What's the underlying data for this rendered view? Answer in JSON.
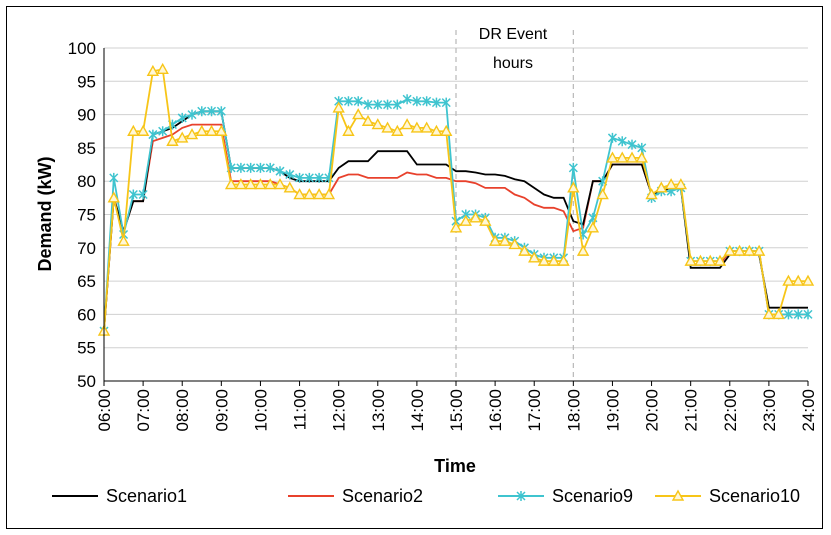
{
  "chart_data": {
    "type": "line",
    "xlabel": "Time",
    "ylabel": "Demand (kW)",
    "ylim": [
      50,
      100
    ],
    "yticks": [
      "50",
      "55",
      "60",
      "65",
      "70",
      "75",
      "80",
      "85",
      "90",
      "95",
      "100"
    ],
    "xlim": [
      6,
      24
    ],
    "xtick_labels": [
      "06:00",
      "07:00",
      "08:00",
      "09:00",
      "10:00",
      "11:00",
      "12:00",
      "13:00",
      "14:00",
      "15:00",
      "16:00",
      "17:00",
      "18:00",
      "19:00",
      "20:00",
      "21:00",
      "22:00",
      "23:00",
      "24:00"
    ],
    "grid": "horizontal",
    "legend_position": "bottom",
    "annotation": {
      "line1": "DR Event",
      "line2": "hours",
      "start_hour": 15,
      "end_hour": 18
    },
    "series": [
      {
        "name": "Scenario1",
        "color": "#000000",
        "marker": "none",
        "x": [
          6,
          6.25,
          6.5,
          6.75,
          7,
          7.25,
          7.5,
          7.75,
          8,
          8.25,
          8.5,
          8.75,
          9,
          9.25,
          9.5,
          9.75,
          10,
          10.25,
          10.5,
          10.75,
          11,
          11.25,
          11.5,
          11.75,
          12,
          12.25,
          12.5,
          12.75,
          13,
          13.25,
          13.5,
          13.75,
          14,
          14.25,
          14.5,
          14.75,
          15,
          15.25,
          15.5,
          15.75,
          16,
          16.25,
          16.5,
          16.75,
          17,
          17.25,
          17.5,
          17.75,
          18,
          18.25,
          18.5,
          18.75,
          19,
          19.25,
          19.5,
          19.75,
          20,
          20.25,
          20.5,
          20.75,
          21,
          21.25,
          21.5,
          21.75,
          22,
          22.25,
          22.5,
          22.75,
          23,
          23.25,
          23.5,
          23.75,
          24
        ],
        "y": [
          57.5,
          77.5,
          72.5,
          77,
          77,
          87,
          87.5,
          88,
          89,
          90,
          90.5,
          90.5,
          90.5,
          82,
          82,
          82,
          82,
          82,
          81.5,
          80.5,
          80,
          80,
          80,
          80,
          82,
          83,
          83,
          83,
          84.5,
          84.5,
          84.5,
          84.5,
          82.5,
          82.5,
          82.5,
          82.5,
          81.5,
          81.5,
          81.3,
          81,
          81,
          80.8,
          80.3,
          80,
          79,
          78,
          77.5,
          77.5,
          74,
          73.5,
          80,
          80,
          82.5,
          82.5,
          82.5,
          82.5,
          78,
          78.5,
          79,
          79,
          67,
          67,
          67,
          67,
          69,
          69,
          69,
          69,
          61,
          61,
          61,
          61,
          61
        ]
      },
      {
        "name": "Scenario2",
        "color": "#e8412c",
        "marker": "none",
        "x": [
          6,
          6.25,
          6.5,
          6.75,
          7,
          7.25,
          7.5,
          7.75,
          8,
          8.25,
          8.5,
          8.75,
          9,
          9.25,
          9.5,
          9.75,
          10,
          10.25,
          10.5,
          10.75,
          11,
          11.25,
          11.5,
          11.75,
          12,
          12.25,
          12.5,
          12.75,
          13,
          13.25,
          13.5,
          13.75,
          14,
          14.25,
          14.5,
          14.75,
          15,
          15.25,
          15.5,
          15.75,
          16,
          16.25,
          16.5,
          16.75,
          17,
          17.25,
          17.5,
          17.75,
          18,
          18.25,
          18.5,
          18.75,
          19,
          19.25,
          19.5,
          19.75,
          20,
          20.25,
          20.5,
          20.75,
          21,
          21.25,
          21.5,
          21.75,
          22,
          22.25,
          22.5,
          22.75,
          23,
          23.25,
          23.5,
          23.75,
          24
        ],
        "y": [
          57.5,
          77.5,
          72.5,
          77,
          77,
          86,
          86.5,
          87,
          88,
          88.5,
          88.5,
          88.5,
          88.5,
          80,
          80,
          80,
          80,
          80,
          79.5,
          79,
          78,
          78,
          78,
          78,
          80.5,
          81,
          81,
          80.5,
          80.5,
          80.5,
          80.5,
          81.3,
          81,
          81,
          80.5,
          80.5,
          80,
          80,
          79.7,
          79,
          79,
          79,
          78,
          77.5,
          76.5,
          76,
          76,
          75.5,
          72.5,
          73,
          80,
          80,
          82.5,
          82.5,
          82.5,
          82.5,
          78,
          78.5,
          79,
          79,
          67.5,
          67.5,
          67.5,
          67.5,
          69.5,
          69.5,
          69.5,
          69.5,
          60,
          60,
          60,
          60,
          60
        ]
      },
      {
        "name": "Scenario9",
        "color": "#3fc4cf",
        "marker": "x",
        "x": [
          6,
          6.25,
          6.5,
          6.75,
          7,
          7.25,
          7.5,
          7.75,
          8,
          8.25,
          8.5,
          8.75,
          9,
          9.25,
          9.5,
          9.75,
          10,
          10.25,
          10.5,
          10.75,
          11,
          11.25,
          11.5,
          11.75,
          12,
          12.25,
          12.5,
          12.75,
          13,
          13.25,
          13.5,
          13.75,
          14,
          14.25,
          14.5,
          14.75,
          15,
          15.25,
          15.5,
          15.75,
          16,
          16.25,
          16.5,
          16.75,
          17,
          17.25,
          17.5,
          17.75,
          18,
          18.25,
          18.5,
          18.75,
          19,
          19.25,
          19.5,
          19.75,
          20,
          20.25,
          20.5,
          20.75,
          21,
          21.25,
          21.5,
          21.75,
          22,
          22.25,
          22.5,
          22.75,
          23,
          23.25,
          23.5,
          23.75,
          24
        ],
        "y": [
          57.5,
          80.5,
          72,
          78,
          78,
          87,
          87.5,
          88.5,
          89.5,
          90,
          90.5,
          90.5,
          90.5,
          82,
          82,
          82,
          82,
          82,
          81.5,
          81,
          80.5,
          80.5,
          80.5,
          80.5,
          92,
          92,
          92,
          91.5,
          91.5,
          91.5,
          91.5,
          92.3,
          92,
          92,
          91.8,
          91.8,
          74,
          75,
          75,
          74.5,
          71.5,
          71.5,
          71,
          70,
          69,
          68.5,
          68.5,
          68.5,
          82,
          72,
          74.5,
          80,
          86.5,
          86,
          85.5,
          85,
          77.5,
          78.5,
          78.5,
          79,
          68,
          68,
          68,
          68,
          69.5,
          69.5,
          69.5,
          69.5,
          60,
          60,
          60,
          60,
          60
        ]
      },
      {
        "name": "Scenario10",
        "color": "#f7c518",
        "marker": "triangle",
        "x": [
          6,
          6.25,
          6.5,
          6.75,
          7,
          7.25,
          7.5,
          7.75,
          8,
          8.25,
          8.5,
          8.75,
          9,
          9.25,
          9.5,
          9.75,
          10,
          10.25,
          10.5,
          10.75,
          11,
          11.25,
          11.5,
          11.75,
          12,
          12.25,
          12.5,
          12.75,
          13,
          13.25,
          13.5,
          13.75,
          14,
          14.25,
          14.5,
          14.75,
          15,
          15.25,
          15.5,
          15.75,
          16,
          16.25,
          16.5,
          16.75,
          17,
          17.25,
          17.5,
          17.75,
          18,
          18.25,
          18.5,
          18.75,
          19,
          19.25,
          19.5,
          19.75,
          20,
          20.25,
          20.5,
          20.75,
          21,
          21.25,
          21.5,
          21.75,
          22,
          22.25,
          22.5,
          22.75,
          23,
          23.25,
          23.5,
          23.75,
          24
        ],
        "y": [
          57.5,
          77.5,
          71,
          87.5,
          87.5,
          96.5,
          96.8,
          86,
          86.5,
          87,
          87.5,
          87.5,
          87.5,
          79.5,
          79.5,
          79.5,
          79.5,
          79.5,
          79.5,
          79,
          78,
          78,
          78,
          78,
          91,
          87.5,
          90,
          89,
          88.5,
          88,
          87.5,
          88.5,
          88,
          88,
          87.5,
          87.5,
          73,
          74,
          74.5,
          74,
          71,
          71,
          70.5,
          69.5,
          68.5,
          68,
          68,
          68,
          79,
          69.5,
          73,
          78,
          83.5,
          83.5,
          83.5,
          83.5,
          78,
          79,
          79.5,
          79.5,
          68,
          68,
          68,
          68,
          69.5,
          69.5,
          69.5,
          69.5,
          60,
          60,
          65,
          65,
          65
        ]
      }
    ]
  }
}
